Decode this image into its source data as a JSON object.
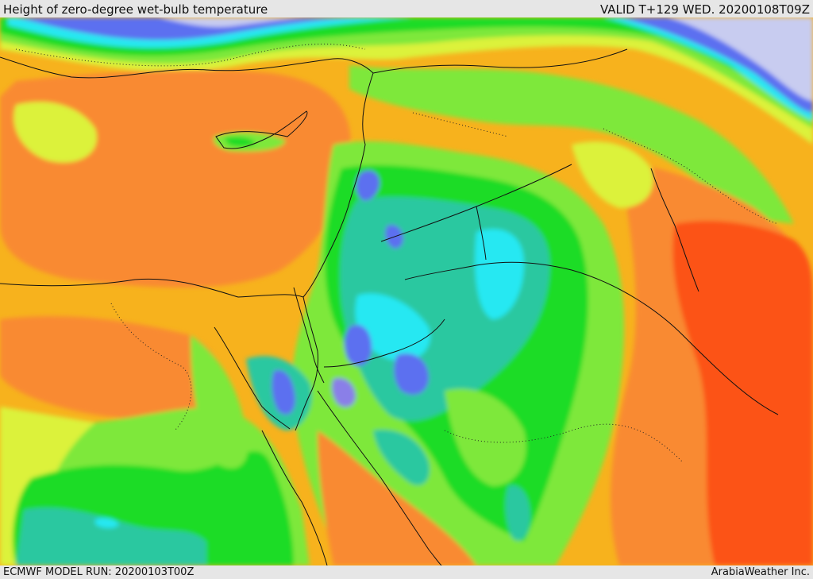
{
  "header": {
    "title": "Height of zero-degree wet-bulb temperature",
    "valid": "VALID T+129 WED. 20200108T09Z"
  },
  "footer": {
    "model_run": "ECMWF MODEL RUN: 20200103T00Z",
    "credit": "ArabiaWeather Inc."
  },
  "colors": {
    "snow": "#c8ccf0",
    "blue": "#5b6ff0",
    "purple": "#8a7fe8",
    "cyan": "#27e8f2",
    "teal": "#2cc8a0",
    "green": "#1fdc27",
    "lime": "#7ee83a",
    "yellow": "#dcf23a",
    "orange_light": "#f7b21d",
    "orange": "#f98a30",
    "red": "#fc5218"
  }
}
